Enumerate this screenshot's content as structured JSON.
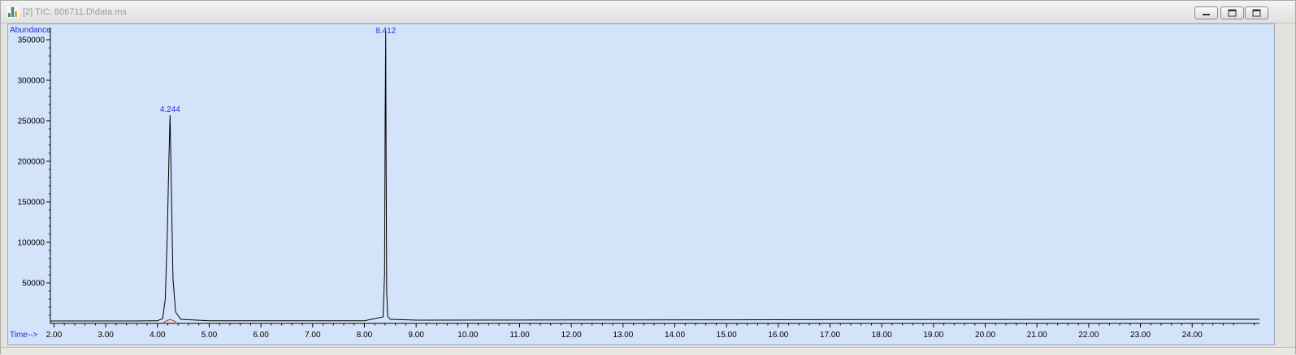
{
  "window": {
    "title": "[2] TIC: 806711.D\\data.ms",
    "buttons": [
      "minimize-icon",
      "restore-icon",
      "close-icon"
    ]
  },
  "colors": {
    "plot_background": "#d3e3fa",
    "trace": "#000000",
    "peak_label": "#1f2fd0",
    "baseline_marker": "#cc2222",
    "axis_label": "#1a2fd0"
  },
  "chart_data": {
    "type": "line",
    "ylabel": "Abundance",
    "xlabel": "Time-->",
    "xlim": [
      1.93,
      25.3
    ],
    "ylim": [
      0,
      365000
    ],
    "x_ticks": [
      "2.00",
      "3.00",
      "4.00",
      "5.00",
      "6.00",
      "7.00",
      "8.00",
      "9.00",
      "10.00",
      "11.00",
      "12.00",
      "13.00",
      "14.00",
      "15.00",
      "16.00",
      "17.00",
      "18.00",
      "19.00",
      "20.00",
      "21.00",
      "22.00",
      "23.00",
      "24.00"
    ],
    "y_ticks": [
      "50000",
      "100000",
      "150000",
      "200000",
      "250000",
      "300000",
      "350000"
    ],
    "peaks": [
      {
        "label": "4.244",
        "x": 4.244,
        "y": 257000
      },
      {
        "label": "8.412",
        "x": 8.412,
        "y": 362000
      }
    ],
    "series": [
      {
        "x": [
          1.93,
          3.5,
          4.0,
          4.1,
          4.15,
          4.19,
          4.22,
          4.244,
          4.27,
          4.3,
          4.35,
          4.45,
          5.0,
          8.0,
          8.36,
          8.39,
          8.4,
          8.412,
          8.42,
          8.43,
          8.45,
          8.5,
          9.0,
          12.0,
          16.0,
          20.0,
          24.0,
          25.3
        ],
        "y": [
          3000,
          3000,
          3200,
          6000,
          30000,
          110000,
          200000,
          257000,
          160000,
          55000,
          14000,
          5000,
          3200,
          3300,
          8000,
          60000,
          250000,
          362000,
          200000,
          40000,
          9000,
          5000,
          4000,
          4200,
          4500,
          4800,
          5000,
          5000
        ]
      }
    ]
  }
}
